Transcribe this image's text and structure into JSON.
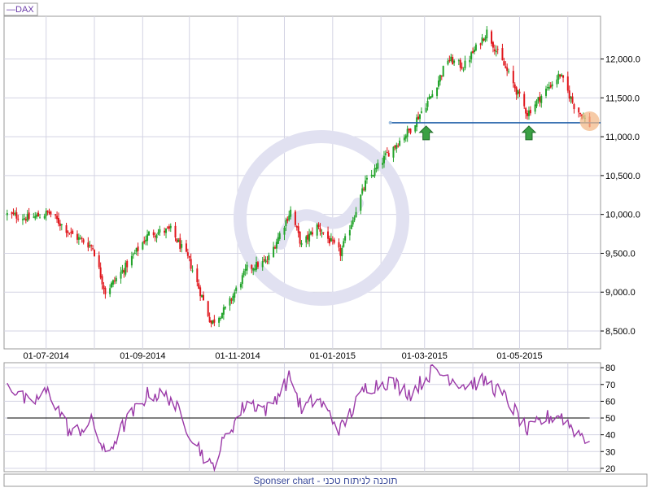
{
  "legend": {
    "label": "—DAX",
    "line_color": "#6a3aa8"
  },
  "footer": {
    "text": "Sponser chart - תוכנה לניתוח טכני"
  },
  "colors": {
    "up_candle": "#22a32a",
    "down_candle": "#e0161c",
    "support_line": "#1f5fa8",
    "rsi_line": "#9b3aa8",
    "rsi_midline": "#000000",
    "grid": "#d3d3e3",
    "arrow": "#3aa043",
    "highlight_circle": "#f3b98a",
    "watermark": "#e1e1f1"
  },
  "chart_data": [
    {
      "type": "candlestick",
      "series": [
        {
          "name": "DAX"
        }
      ],
      "x_tick_labels": [
        "01-07-2014",
        "01-09-2014",
        "01-11-2014",
        "01-01-2015",
        "01-03-2015",
        "01-05-2015"
      ],
      "y_tick_labels": [
        "12,000.0",
        "11,500.0",
        "11,000.0",
        "10,500.0",
        "10,000.0",
        "9,500.0",
        "9,000.0",
        "8,500.0"
      ],
      "y_ticks": [
        12000,
        11500,
        11000,
        10500,
        10000,
        9500,
        9000,
        8500
      ],
      "ylim": [
        8270,
        12550
      ],
      "xlim": [
        "2014-06-04",
        "2015-06-22"
      ],
      "grid": true,
      "legend_position": "top-left",
      "anchors": [
        {
          "date": "2014-06-06",
          "close": 10000
        },
        {
          "date": "2014-06-20",
          "close": 9950
        },
        {
          "date": "2014-07-03",
          "close": 10020
        },
        {
          "date": "2014-07-17",
          "close": 9750
        },
        {
          "date": "2014-07-31",
          "close": 9580
        },
        {
          "date": "2014-08-08",
          "close": 9000
        },
        {
          "date": "2014-08-20",
          "close": 9300
        },
        {
          "date": "2014-09-05",
          "close": 9750
        },
        {
          "date": "2014-09-19",
          "close": 9800
        },
        {
          "date": "2014-10-01",
          "close": 9400
        },
        {
          "date": "2014-10-15",
          "close": 8600
        },
        {
          "date": "2014-10-25",
          "close": 8800
        },
        {
          "date": "2014-11-07",
          "close": 9300
        },
        {
          "date": "2014-11-20",
          "close": 9400
        },
        {
          "date": "2014-12-05",
          "close": 10050
        },
        {
          "date": "2014-12-12",
          "close": 9600
        },
        {
          "date": "2014-12-22",
          "close": 9850
        },
        {
          "date": "2015-01-06",
          "close": 9500
        },
        {
          "date": "2015-01-22",
          "close": 10400
        },
        {
          "date": "2015-02-06",
          "close": 10800
        },
        {
          "date": "2015-02-20",
          "close": 11100
        },
        {
          "date": "2015-03-06",
          "close": 11550
        },
        {
          "date": "2015-03-16",
          "close": 12000
        },
        {
          "date": "2015-03-26",
          "close": 11900
        },
        {
          "date": "2015-04-10",
          "close": 12350
        },
        {
          "date": "2015-04-24",
          "close": 11800
        },
        {
          "date": "2015-05-06",
          "close": 11300
        },
        {
          "date": "2015-05-18",
          "close": 11600
        },
        {
          "date": "2015-05-27",
          "close": 11800
        },
        {
          "date": "2015-06-05",
          "close": 11400
        },
        {
          "date": "2015-06-15",
          "close": 11150
        }
      ],
      "annotations": {
        "support_line": {
          "value": 11180,
          "from": "2015-02-07",
          "to": "2015-06-22"
        },
        "up_arrows": [
          "2015-03-02",
          "2015-05-07"
        ],
        "highlight_circle": {
          "date": "2015-06-15",
          "value": 11200
        }
      }
    },
    {
      "type": "line",
      "series": [
        {
          "name": ""
        }
      ],
      "y_tick_labels": [
        "80",
        "70",
        "60",
        "50",
        "40",
        "30",
        "20"
      ],
      "y_ticks": [
        80,
        70,
        60,
        50,
        40,
        30,
        20
      ],
      "ylim": [
        18,
        83
      ],
      "midline": 50,
      "anchors": [
        {
          "date": "2014-06-06",
          "value": 71
        },
        {
          "date": "2014-06-20",
          "value": 58
        },
        {
          "date": "2014-07-03",
          "value": 66
        },
        {
          "date": "2014-07-17",
          "value": 40
        },
        {
          "date": "2014-07-31",
          "value": 48
        },
        {
          "date": "2014-08-08",
          "value": 27
        },
        {
          "date": "2014-08-20",
          "value": 46
        },
        {
          "date": "2014-09-05",
          "value": 65
        },
        {
          "date": "2014-09-19",
          "value": 62
        },
        {
          "date": "2014-10-01",
          "value": 42
        },
        {
          "date": "2014-10-15",
          "value": 20
        },
        {
          "date": "2014-10-25",
          "value": 40
        },
        {
          "date": "2014-11-07",
          "value": 60
        },
        {
          "date": "2014-11-20",
          "value": 55
        },
        {
          "date": "2014-12-05",
          "value": 75
        },
        {
          "date": "2014-12-12",
          "value": 55
        },
        {
          "date": "2014-12-22",
          "value": 62
        },
        {
          "date": "2015-01-06",
          "value": 43
        },
        {
          "date": "2015-01-22",
          "value": 68
        },
        {
          "date": "2015-02-06",
          "value": 72
        },
        {
          "date": "2015-02-20",
          "value": 65
        },
        {
          "date": "2015-03-06",
          "value": 78
        },
        {
          "date": "2015-03-16",
          "value": 75
        },
        {
          "date": "2015-03-26",
          "value": 70
        },
        {
          "date": "2015-04-10",
          "value": 72
        },
        {
          "date": "2015-04-24",
          "value": 60
        },
        {
          "date": "2015-05-06",
          "value": 42
        },
        {
          "date": "2015-05-18",
          "value": 50
        },
        {
          "date": "2015-05-27",
          "value": 52
        },
        {
          "date": "2015-06-05",
          "value": 43
        },
        {
          "date": "2015-06-15",
          "value": 37
        }
      ]
    }
  ]
}
